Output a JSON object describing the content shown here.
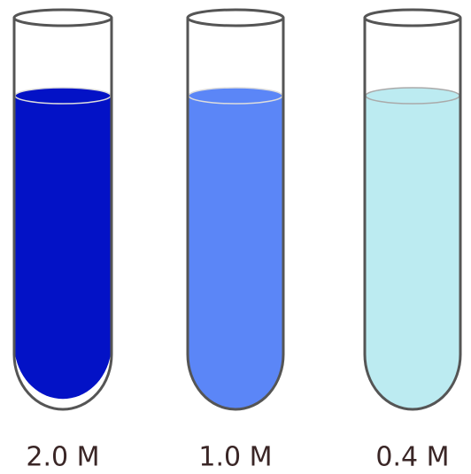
{
  "tubes": [
    {
      "label": "2.0 M"
    },
    {
      "label": "1.0 M"
    },
    {
      "label": "0.4 M"
    }
  ]
}
